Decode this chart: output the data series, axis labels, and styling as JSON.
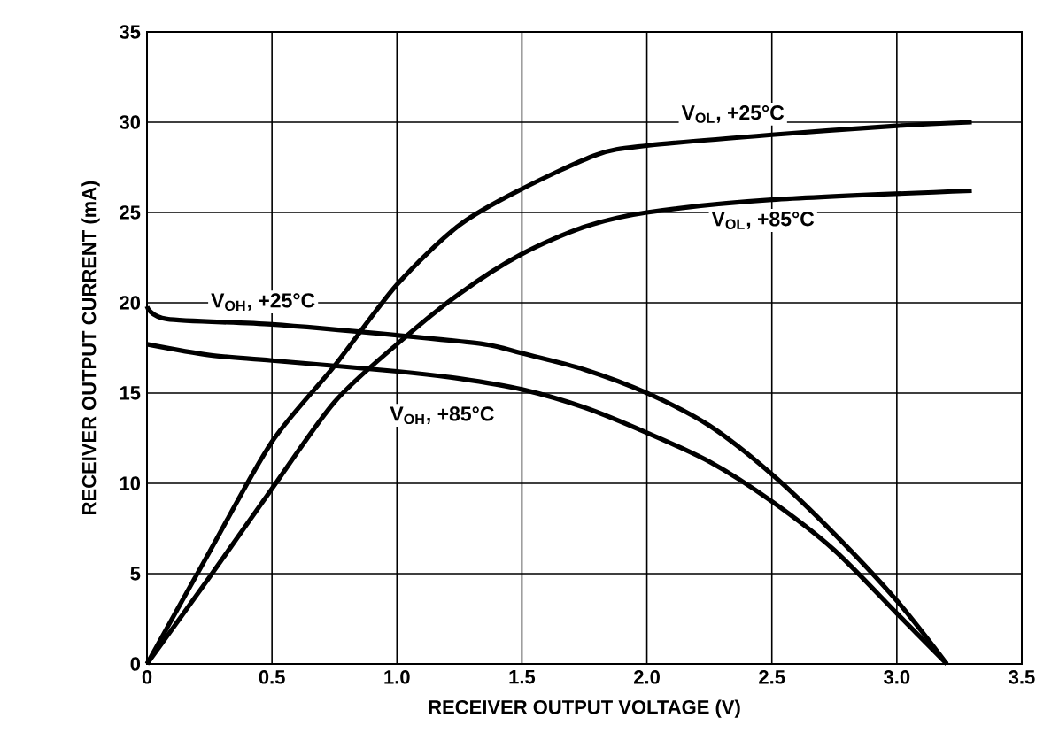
{
  "chart_data": {
    "type": "line",
    "xlabel": "RECEIVER OUTPUT VOLTAGE (V)",
    "ylabel": "RECEIVER OUTPUT CURRENT (mA)",
    "xlim": [
      0,
      3.5
    ],
    "ylim": [
      0,
      35
    ],
    "xticks": [
      {
        "value": 0,
        "label": "0"
      },
      0.5,
      {
        "value": 1,
        "label": "1.0"
      },
      1.5,
      {
        "value": 2,
        "label": "2.0"
      },
      2.5,
      {
        "value": 3,
        "label": "3.0"
      },
      3.5
    ],
    "yticks": [
      0,
      5,
      10,
      15,
      20,
      25,
      30,
      35
    ],
    "grid": true,
    "legend": false,
    "marker": "none",
    "line_style": "solid",
    "series": [
      {
        "name": "V$_{OL}$, +25°C",
        "color": "#000000",
        "x": [
          0,
          0.25,
          0.5,
          0.75,
          1.0,
          1.25,
          1.5,
          1.8,
          2.0,
          2.5,
          3.0,
          3.3
        ],
        "values": [
          0,
          6.2,
          12.3,
          16.5,
          21,
          24.3,
          26.3,
          28.2,
          28.7,
          29.3,
          29.8,
          30
        ]
      },
      {
        "name": "V$_{OL}$, +85°C",
        "color": "#000000",
        "x": [
          0,
          0.25,
          0.5,
          0.75,
          1.0,
          1.25,
          1.5,
          1.75,
          2.0,
          2.5,
          3.3
        ],
        "values": [
          0,
          4.8,
          9.7,
          14.5,
          17.7,
          20.5,
          22.7,
          24.2,
          25,
          25.7,
          26.2
        ]
      },
      {
        "name": "V$_{OH}$, +25°C",
        "color": "#000000",
        "x": [
          0,
          0.08,
          0.5,
          1.0,
          1.35,
          1.5,
          1.75,
          2.0,
          2.25,
          2.5,
          2.75,
          3.0,
          3.2
        ],
        "values": [
          19.8,
          19.1,
          18.8,
          18.2,
          17.7,
          17.2,
          16.3,
          15,
          13.2,
          10.5,
          7.2,
          3.5,
          0
        ]
      },
      {
        "name": "V$_{OH}$, +85°C",
        "color": "#000000",
        "x": [
          0,
          0.25,
          0.5,
          1.0,
          1.25,
          1.5,
          1.75,
          2.0,
          2.25,
          2.5,
          2.75,
          3.0,
          3.2
        ],
        "values": [
          17.7,
          17.1,
          16.8,
          16.2,
          15.8,
          15.2,
          14.2,
          12.8,
          11.2,
          9,
          6.3,
          2.8,
          0
        ]
      }
    ]
  }
}
